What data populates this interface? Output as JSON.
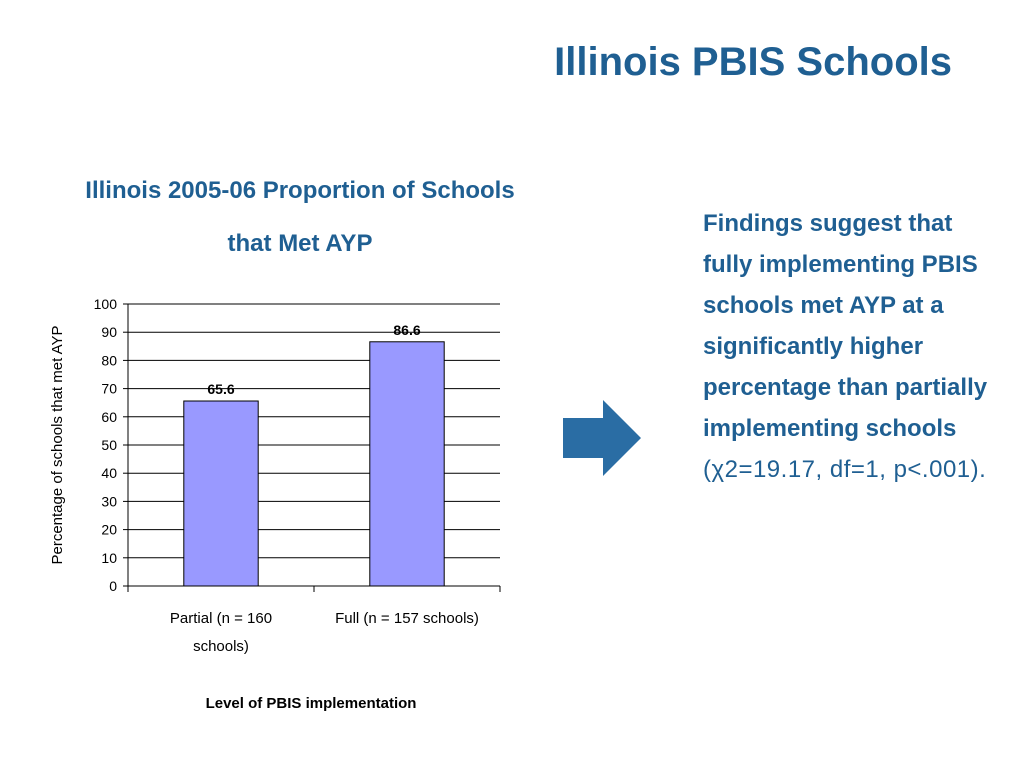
{
  "slide": {
    "title": "Illinois PBIS Schools",
    "findings_main": "Findings suggest that fully implementing PBIS schools met AYP at a significantly higher percentage than partially implementing schools",
    "findings_stat": " (χ2=19.17, df=1, p<.001)."
  },
  "colors": {
    "title": "#1f5f92",
    "bar_fill": "#9999ff",
    "bar_stroke": "#000000",
    "arrow": "#2a6da4"
  },
  "icons": {
    "arrow": "right-arrow-icon"
  },
  "chart_data": {
    "type": "bar",
    "title_lines": [
      "Illinois 2005-06 Proportion of Schools",
      "that Met AYP"
    ],
    "categories": [
      [
        "Partial (n = 160",
        "schools)"
      ],
      [
        "Full (n = 157 schools)"
      ]
    ],
    "values": [
      65.6,
      86.6
    ],
    "data_labels": [
      "65.6",
      "86.6"
    ],
    "xlabel": "Level of PBIS implementation",
    "ylabel": "Percentage of schools that met AYP",
    "ylim": [
      0,
      100
    ],
    "yticks": [
      0,
      10,
      20,
      30,
      40,
      50,
      60,
      70,
      80,
      90,
      100
    ],
    "grid": true
  }
}
